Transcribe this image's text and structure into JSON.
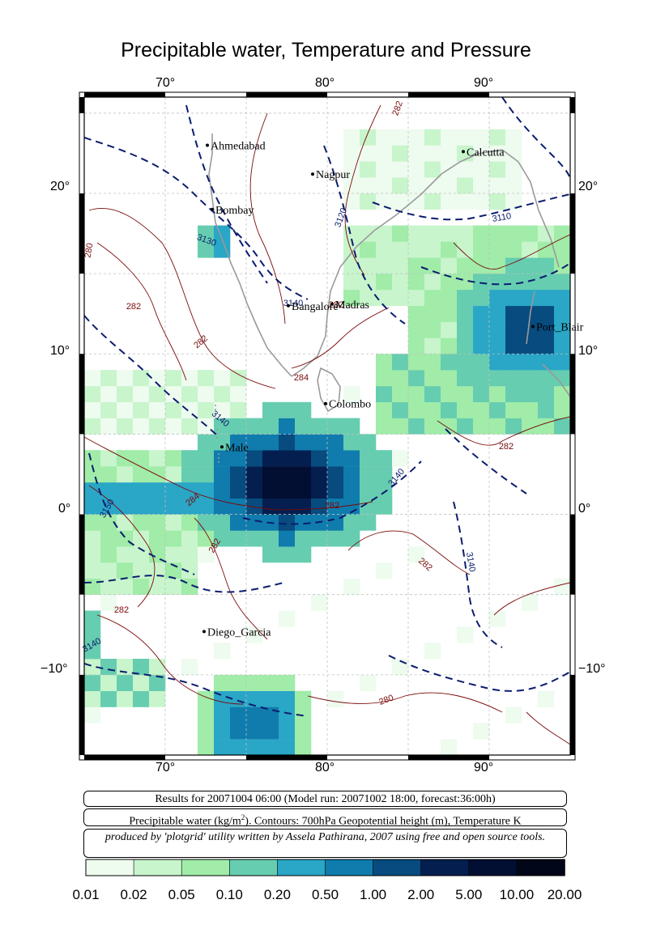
{
  "title": "Precipitable water, Temperature and Pressure",
  "lon_ticks": [
    "70°",
    "80°",
    "90°"
  ],
  "lat_ticks": [
    "20°",
    "10°",
    "0°",
    "−10°"
  ],
  "cities": [
    {
      "name": "Ahmedabad",
      "lon": 72.6,
      "lat": 23.0
    },
    {
      "name": "Calcutta",
      "lon": 88.4,
      "lat": 22.6
    },
    {
      "name": "Nagpur",
      "lon": 79.1,
      "lat": 21.2
    },
    {
      "name": "Bombay",
      "lon": 72.9,
      "lat": 19.0
    },
    {
      "name": "Bangalore",
      "lon": 77.6,
      "lat": 13.0
    },
    {
      "name": "Madras",
      "lon": 80.3,
      "lat": 13.1
    },
    {
      "name": "Port_Blair",
      "lon": 92.7,
      "lat": 11.7
    },
    {
      "name": "Colombo",
      "lon": 79.9,
      "lat": 6.9
    },
    {
      "name": "Male",
      "lon": 73.5,
      "lat": 4.2
    },
    {
      "name": "Diego_Garcia",
      "lon": 72.4,
      "lat": -7.3
    }
  ],
  "contour_labels": [
    "3130",
    "3120",
    "3110",
    "3140",
    "3150",
    "3140",
    "3140",
    "3140",
    "3140",
    "280",
    "282",
    "282",
    "282",
    "284",
    "284",
    "282",
    "282",
    "282",
    "282",
    "282",
    "282",
    "280"
  ],
  "info": {
    "results": "Results for 20071004 06:00 (Model run: 20071002 18:00, forecast:36:00h)",
    "desc_part1": "Precipitable water (kg/m",
    "desc_sup": "2",
    "desc_part2": ").  Contours: 700hPa Geopotential height (m), Temperature K",
    "credit": "produced by 'plotgrid' utility written by Assela Pathirana, 2007 using free and open source tools."
  },
  "colorbar": {
    "labels": [
      "0.01",
      "0.02",
      "0.05",
      "0.10",
      "0.20",
      "0.50",
      "1.00",
      "2.00",
      "5.00",
      "10.00",
      "20.00"
    ],
    "colors": [
      "#eefbef",
      "#c8f5cc",
      "#a0eca8",
      "#66cdb0",
      "#2aa6c6",
      "#0f7cad",
      "#074b7f",
      "#031e4f",
      "#020f32",
      "#010718"
    ]
  },
  "colors": {
    "contour_geopotential": "#0b1d6e",
    "contour_temperature": "#7a0a0a",
    "coastline": "#9a9a9a",
    "grid": "#c0c0c0"
  },
  "chart_data": {
    "type": "heatmap",
    "lon_range": [
      65,
      95
    ],
    "lat_range": [
      -15,
      26
    ],
    "cell_size_deg": 1
  }
}
